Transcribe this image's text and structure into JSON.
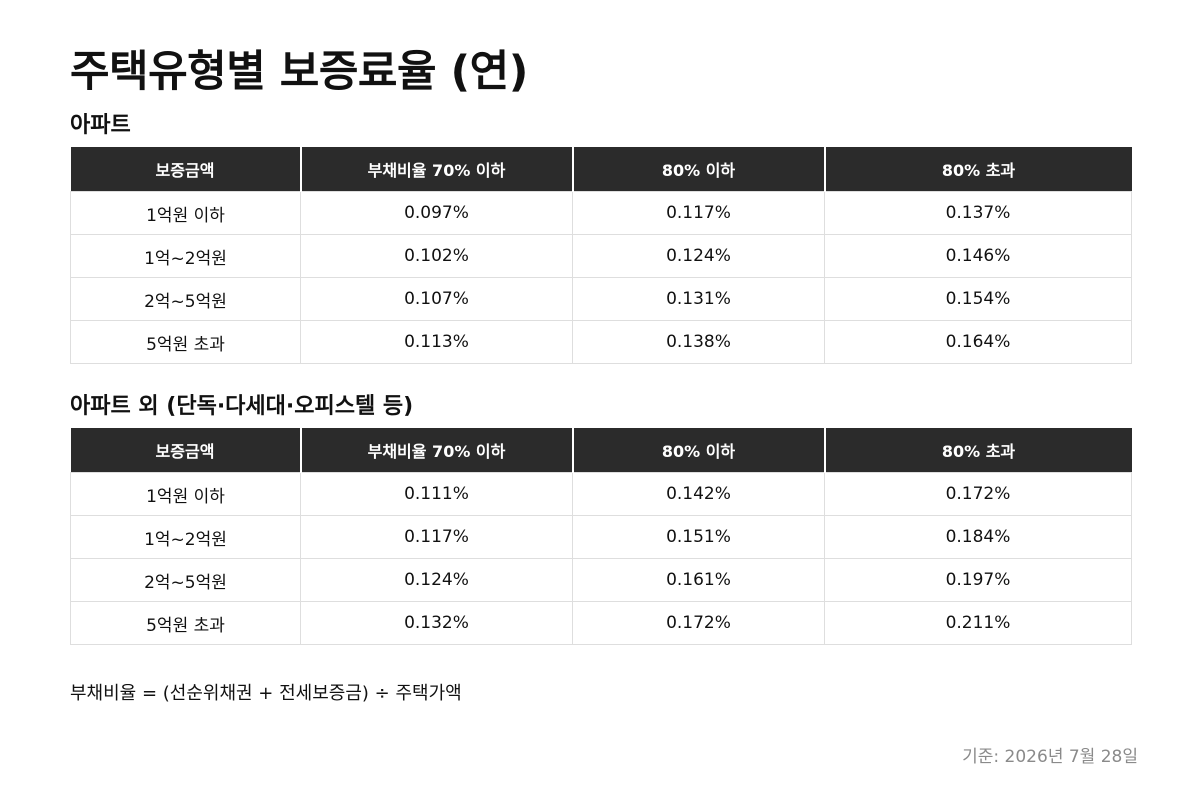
{
  "title": "주택유형별 보증료율 (연)",
  "headers": [
    "보증금액",
    "부채비율 70% 이하",
    "80% 이하",
    "80% 초과"
  ],
  "sections": [
    {
      "title": "아파트",
      "rows": [
        {
          "amount": "1억원 이하",
          "rates": [
            "0.097%",
            "0.117%",
            "0.137%"
          ]
        },
        {
          "amount": "1억~2억원",
          "rates": [
            "0.102%",
            "0.124%",
            "0.146%"
          ]
        },
        {
          "amount": "2억~5억원",
          "rates": [
            "0.107%",
            "0.131%",
            "0.154%"
          ]
        },
        {
          "amount": "5억원 초과",
          "rates": [
            "0.113%",
            "0.138%",
            "0.164%"
          ]
        }
      ]
    },
    {
      "title": "아파트 외 (단독·다세대·오피스텔 등)",
      "rows": [
        {
          "amount": "1억원 이하",
          "rates": [
            "0.111%",
            "0.142%",
            "0.172%"
          ]
        },
        {
          "amount": "1억~2억원",
          "rates": [
            "0.117%",
            "0.151%",
            "0.184%"
          ]
        },
        {
          "amount": "2억~5억원",
          "rates": [
            "0.124%",
            "0.161%",
            "0.197%"
          ]
        },
        {
          "amount": "5억원 초과",
          "rates": [
            "0.132%",
            "0.172%",
            "0.211%"
          ]
        }
      ]
    }
  ],
  "note": "부채비율 = (선순위채권 + 전세보증금) ÷ 주택가액",
  "base_date": "기준: 2026년 7월 28일"
}
